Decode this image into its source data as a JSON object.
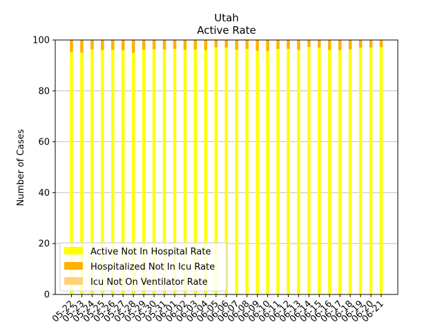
{
  "chart_data": {
    "type": "bar",
    "stacked": true,
    "title": "Utah",
    "subtitle": "Active Rate",
    "xlabel": "",
    "ylabel": "Number of Cases",
    "ylim": [
      0,
      100
    ],
    "yticks": [
      0,
      20,
      40,
      60,
      80,
      100
    ],
    "grid": "horizontal",
    "legend_position": "lower-left",
    "categories": [
      "05-22",
      "05-23",
      "05-24",
      "05-25",
      "05-26",
      "05-27",
      "05-28",
      "05-29",
      "05-30",
      "05-31",
      "06-01",
      "06-02",
      "06-03",
      "06-04",
      "06-05",
      "06-06",
      "06-07",
      "06-08",
      "06-09",
      "06-10",
      "06-11",
      "06-12",
      "06-13",
      "06-14",
      "06-15",
      "06-16",
      "06-17",
      "06-18",
      "06-19",
      "06-20",
      "06-21"
    ],
    "series": [
      {
        "name": "Active Not In Hospital Rate",
        "color": "#ffff00",
        "values": [
          95.2,
          95.1,
          96.3,
          96.1,
          96.2,
          96.0,
          95.0,
          96.2,
          96.3,
          96.3,
          96.5,
          96.2,
          96.3,
          96.1,
          97.1,
          97.0,
          96.2,
          96.5,
          95.8,
          95.7,
          96.5,
          96.5,
          96.1,
          97.3,
          97.0,
          96.1,
          96.0,
          96.3,
          97.0,
          97.0,
          97.2
        ]
      },
      {
        "name": "Hospitalized Not In Icu Rate",
        "color": "#ffb000",
        "values": [
          4.8,
          4.9,
          3.7,
          3.9,
          3.8,
          4.0,
          5.0,
          3.8,
          3.7,
          3.7,
          3.5,
          3.8,
          3.7,
          3.9,
          2.9,
          3.0,
          3.8,
          3.5,
          4.2,
          4.3,
          3.5,
          3.5,
          3.9,
          2.7,
          3.0,
          3.9,
          4.0,
          3.7,
          3.0,
          3.0,
          2.8
        ]
      },
      {
        "name": "Icu Not On Ventilator Rate",
        "color": "#ffd27a",
        "values": [
          0,
          0,
          0,
          0,
          0,
          0,
          0,
          0,
          0,
          0,
          0,
          0,
          0,
          0,
          0,
          0,
          0,
          0,
          0,
          0,
          0,
          0,
          0,
          0,
          0,
          0,
          0,
          0,
          0,
          0,
          0
        ]
      }
    ]
  }
}
